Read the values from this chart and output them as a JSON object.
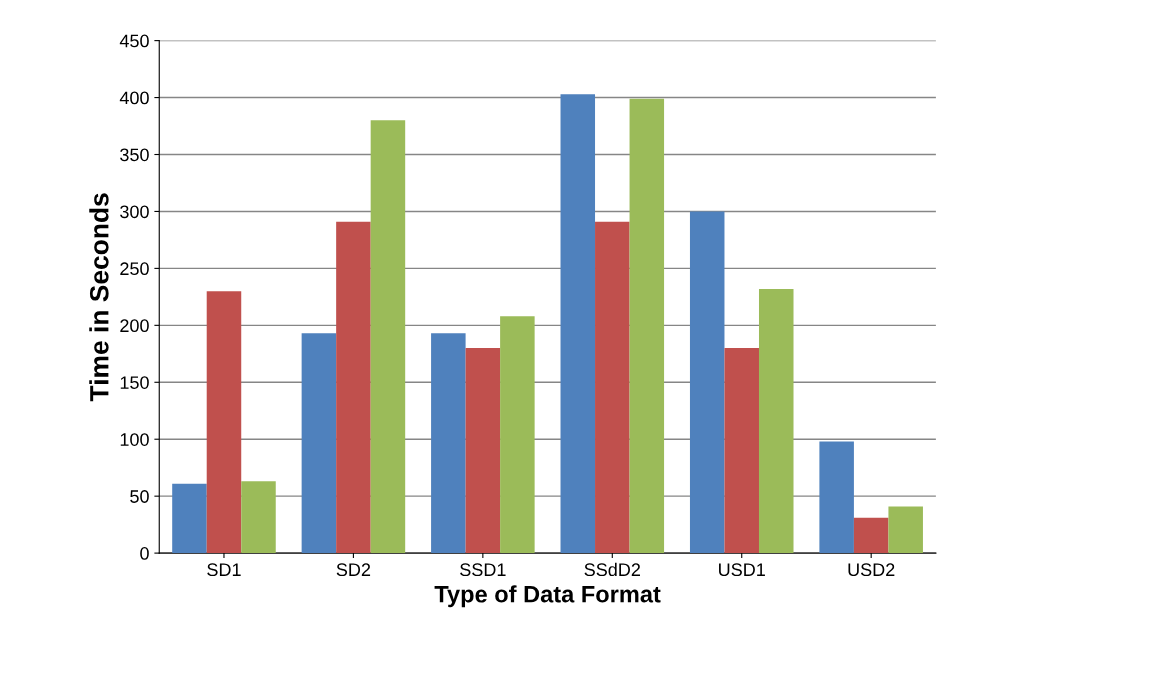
{
  "chart_data": {
    "type": "bar",
    "xlabel": "Type of Data Format",
    "ylabel": "Time in Seconds",
    "categories": [
      "SD1",
      "SD2",
      "SSD1",
      "SSdD2",
      "USD1",
      "USD2"
    ],
    "series": [
      {
        "color": "#4f81bd",
        "values": [
          61,
          193,
          193,
          403,
          300,
          98
        ]
      },
      {
        "color": "#c0504d",
        "values": [
          230,
          291,
          180,
          291,
          180,
          31
        ]
      },
      {
        "color": "#9bbb59",
        "values": [
          63,
          380,
          208,
          399,
          232,
          41
        ]
      }
    ],
    "ylim": [
      0,
      450
    ],
    "yticks": [
      0,
      50,
      100,
      150,
      200,
      250,
      300,
      350,
      400,
      450
    ],
    "grid": "y"
  }
}
